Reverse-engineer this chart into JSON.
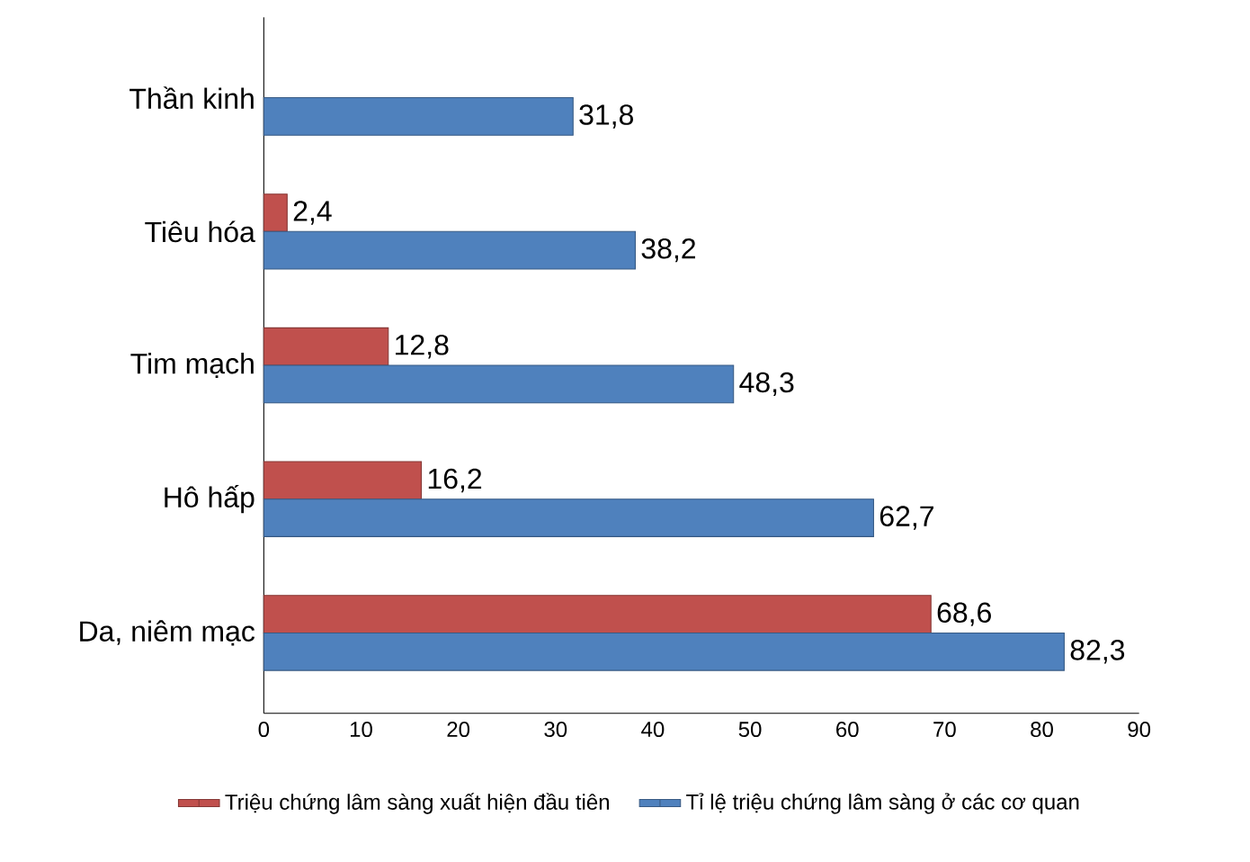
{
  "chart_data": {
    "type": "bar",
    "orientation": "horizontal",
    "categories": [
      "Thần kinh",
      "Tiêu hóa",
      "Tim mạch",
      "Hô hấp",
      "Da, niêm mạc"
    ],
    "series": [
      {
        "name": "Triệu chứng lâm sàng xuất hiện đầu tiên",
        "color": "#c0504d",
        "values": [
          null,
          2.4,
          12.8,
          16.2,
          68.6
        ],
        "value_labels": [
          null,
          "2,4",
          "12,8",
          "16,2",
          "68,6"
        ]
      },
      {
        "name": "Tỉ lệ triệu chứng lâm sàng ở các cơ quan",
        "color": "#4f81bd",
        "values": [
          31.8,
          38.2,
          48.3,
          62.7,
          82.3
        ],
        "value_labels": [
          "31,8",
          "38,2",
          "48,3",
          "62,7",
          "82,3"
        ]
      }
    ],
    "xlim": [
      0,
      90
    ],
    "xticks": [
      0,
      10,
      20,
      30,
      40,
      50,
      60,
      70,
      80,
      90
    ],
    "grid": false,
    "legend": "bottom"
  }
}
